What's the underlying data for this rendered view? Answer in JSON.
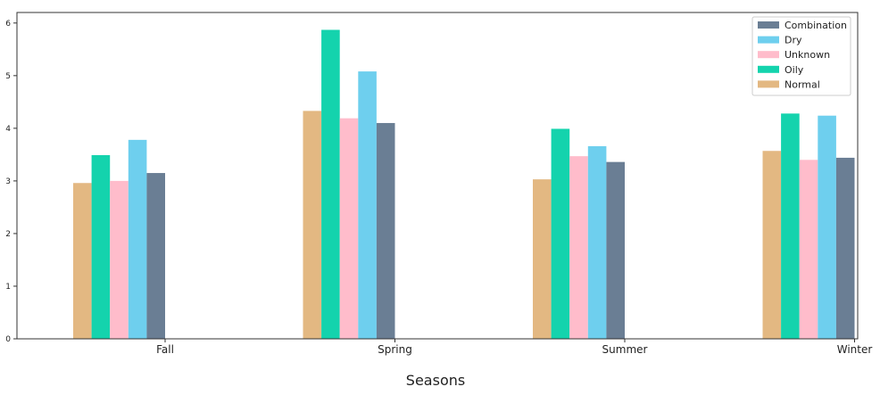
{
  "chart_data": {
    "type": "bar",
    "title": "",
    "xlabel": "Seasons",
    "ylabel": "",
    "ylim": [
      0,
      6.2
    ],
    "yticks": [
      0,
      1,
      2,
      3,
      4,
      5,
      6
    ],
    "grid": false,
    "legend_position": "top-right",
    "categories": [
      "Fall",
      "Spring",
      "Summer",
      "Winter"
    ],
    "series": [
      {
        "name": "Normal",
        "color": "#e3b882",
        "values": [
          2.96,
          4.33,
          3.03,
          3.57
        ]
      },
      {
        "name": "Oily",
        "color": "#14d3ad",
        "values": [
          3.49,
          5.87,
          3.99,
          4.28
        ]
      },
      {
        "name": "Unknown",
        "color": "#ffbccb",
        "values": [
          3.0,
          4.19,
          3.47,
          3.4
        ]
      },
      {
        "name": "Dry",
        "color": "#6ecfee",
        "values": [
          3.78,
          5.08,
          3.66,
          4.24
        ]
      },
      {
        "name": "Combination",
        "color": "#6a7e94",
        "values": [
          3.15,
          4.1,
          3.36,
          3.44
        ]
      }
    ],
    "legend_order": [
      "Combination",
      "Dry",
      "Unknown",
      "Oily",
      "Normal"
    ]
  }
}
